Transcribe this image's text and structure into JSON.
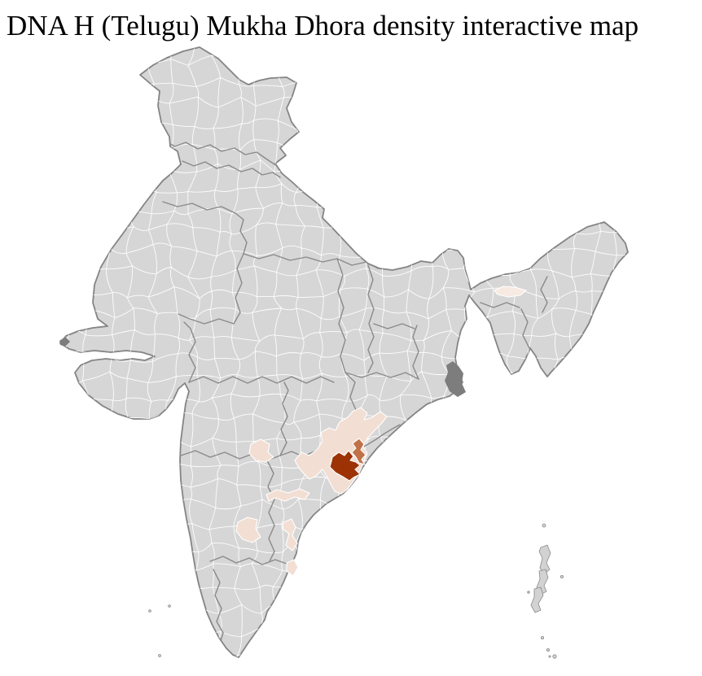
{
  "title": "DNA H (Telugu) Mukha Dhora density interactive map",
  "map": {
    "type": "choropleth",
    "subject": "district-level density across India",
    "legend_visible": false,
    "colors": {
      "background": "#ffffff",
      "land": "#d6d6d6",
      "district_border": "#ffffff",
      "state_border": "#8a8a8a",
      "coast_outline": "#848484",
      "density_high": "#9d3205",
      "density_medium": "#c07148",
      "density_low": "#f2ded3",
      "density_very_low": "#f7eae2",
      "dark_region": "#7d7d7d",
      "island": "#d2d2d2"
    },
    "districts": [
      {
        "id": "high-density-district",
        "level": "high"
      },
      {
        "id": "medium-density-district",
        "level": "medium"
      },
      {
        "id": "coastal-low-density-belt",
        "level": "low"
      },
      {
        "id": "low-density-district-2",
        "level": "low"
      },
      {
        "id": "low-density-district-3",
        "level": "low"
      },
      {
        "id": "low-density-district-4",
        "level": "low"
      },
      {
        "id": "low-density-district-5",
        "level": "low"
      },
      {
        "id": "low-density-district-6",
        "level": "low"
      },
      {
        "id": "very-low-density-district-7",
        "level": "very_low"
      }
    ]
  }
}
